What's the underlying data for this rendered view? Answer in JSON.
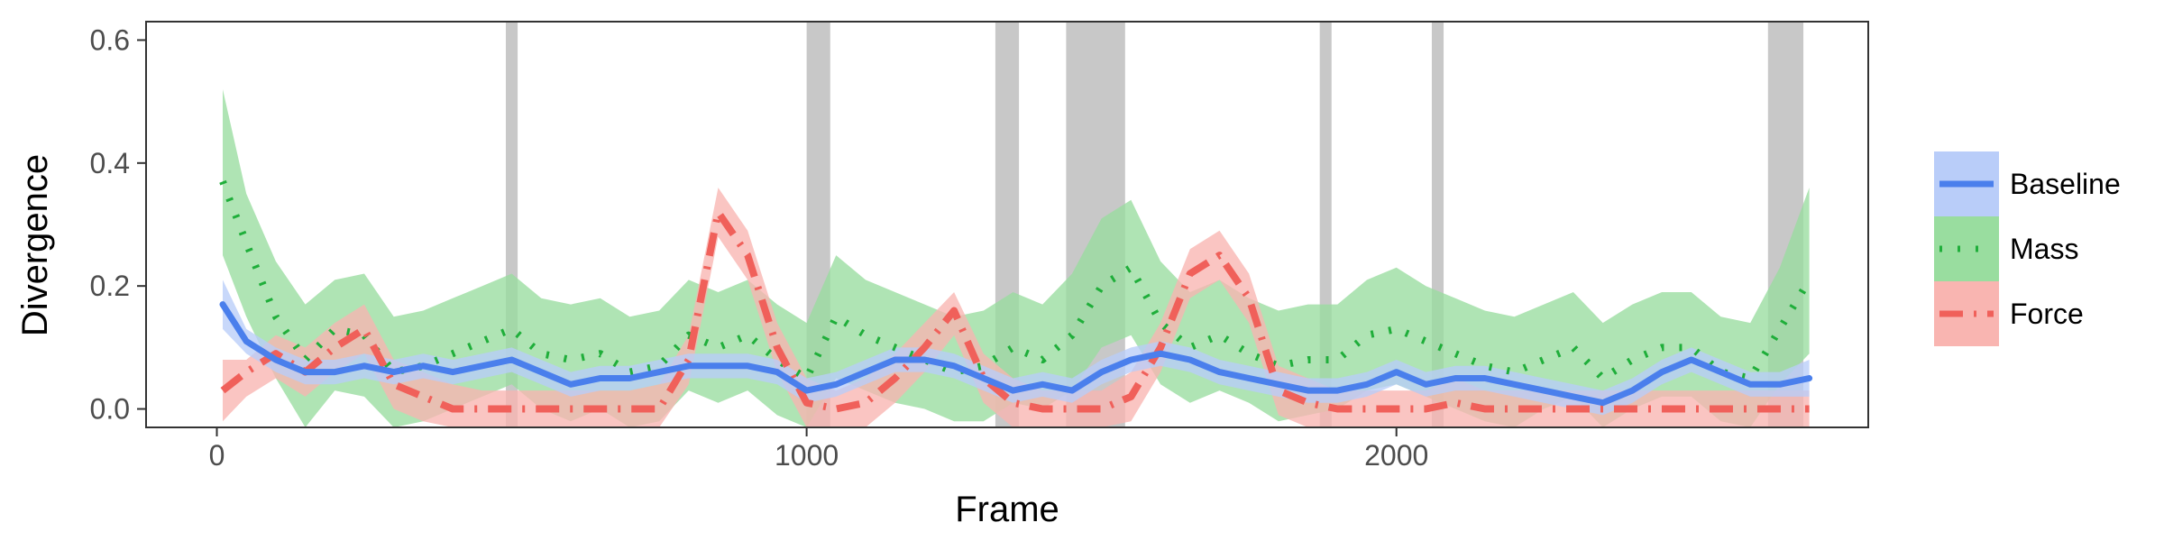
{
  "chart_data": {
    "type": "line",
    "xlabel": "Frame",
    "ylabel": "Divergence",
    "xlim": [
      -120,
      2800
    ],
    "ylim": [
      -0.03,
      0.63
    ],
    "x_ticks": [
      0,
      1000,
      2000
    ],
    "x_tick_labels": [
      "0",
      "1000",
      "2000"
    ],
    "y_ticks": [
      0.0,
      0.2,
      0.4,
      0.6
    ],
    "y_tick_labels": [
      "0.0",
      "0.2",
      "0.4",
      "0.6"
    ],
    "grid": false,
    "legend_position": "right",
    "shaded_intervals": [
      [
        490,
        510
      ],
      [
        1000,
        1040
      ],
      [
        1320,
        1360
      ],
      [
        1440,
        1540
      ],
      [
        1870,
        1890
      ],
      [
        2060,
        2080
      ],
      [
        2630,
        2690
      ]
    ],
    "x": [
      10,
      50,
      100,
      150,
      200,
      250,
      300,
      350,
      400,
      450,
      500,
      550,
      600,
      650,
      700,
      750,
      800,
      850,
      900,
      950,
      1000,
      1050,
      1100,
      1150,
      1200,
      1250,
      1300,
      1350,
      1400,
      1450,
      1500,
      1550,
      1600,
      1650,
      1700,
      1750,
      1800,
      1850,
      1900,
      1950,
      2000,
      2050,
      2100,
      2150,
      2200,
      2250,
      2300,
      2350,
      2400,
      2450,
      2500,
      2550,
      2600,
      2650,
      2700
    ],
    "series": [
      {
        "name": "Baseline",
        "color": "#4a7fec",
        "fill": "#b9cdf9",
        "line_style": "solid",
        "values": [
          0.17,
          0.11,
          0.08,
          0.06,
          0.06,
          0.07,
          0.06,
          0.07,
          0.06,
          0.07,
          0.08,
          0.06,
          0.04,
          0.05,
          0.05,
          0.06,
          0.07,
          0.07,
          0.07,
          0.06,
          0.03,
          0.04,
          0.06,
          0.08,
          0.08,
          0.07,
          0.05,
          0.03,
          0.04,
          0.03,
          0.06,
          0.08,
          0.09,
          0.08,
          0.06,
          0.05,
          0.04,
          0.03,
          0.03,
          0.04,
          0.06,
          0.04,
          0.05,
          0.05,
          0.04,
          0.03,
          0.02,
          0.01,
          0.03,
          0.06,
          0.08,
          0.06,
          0.04,
          0.04,
          0.05
        ],
        "lower": [
          0.13,
          0.09,
          0.06,
          0.04,
          0.04,
          0.05,
          0.04,
          0.05,
          0.04,
          0.05,
          0.06,
          0.04,
          0.02,
          0.03,
          0.03,
          0.04,
          0.05,
          0.05,
          0.05,
          0.04,
          0.01,
          0.02,
          0.04,
          0.06,
          0.06,
          0.05,
          0.03,
          0.01,
          0.02,
          0.01,
          0.04,
          0.06,
          0.07,
          0.06,
          0.04,
          0.03,
          0.02,
          0.01,
          0.01,
          0.02,
          0.04,
          0.02,
          0.03,
          0.03,
          0.02,
          0.01,
          0.0,
          -0.01,
          0.01,
          0.04,
          0.06,
          0.04,
          0.02,
          0.02,
          0.02
        ],
        "upper": [
          0.21,
          0.13,
          0.1,
          0.08,
          0.08,
          0.09,
          0.08,
          0.09,
          0.08,
          0.09,
          0.1,
          0.08,
          0.06,
          0.07,
          0.07,
          0.08,
          0.09,
          0.09,
          0.09,
          0.08,
          0.05,
          0.06,
          0.08,
          0.1,
          0.1,
          0.09,
          0.07,
          0.05,
          0.06,
          0.05,
          0.08,
          0.1,
          0.11,
          0.1,
          0.08,
          0.07,
          0.06,
          0.05,
          0.05,
          0.06,
          0.08,
          0.06,
          0.07,
          0.07,
          0.06,
          0.05,
          0.04,
          0.03,
          0.05,
          0.08,
          0.1,
          0.08,
          0.06,
          0.06,
          0.08
        ]
      },
      {
        "name": "Mass",
        "color": "#1fae3a",
        "fill": "#99dd9f",
        "line_style": "dotted",
        "values": [
          0.37,
          0.27,
          0.15,
          0.08,
          0.13,
          0.12,
          0.06,
          0.07,
          0.09,
          0.11,
          0.13,
          0.09,
          0.08,
          0.09,
          0.06,
          0.07,
          0.12,
          0.1,
          0.12,
          0.08,
          0.05,
          0.15,
          0.12,
          0.1,
          0.08,
          0.06,
          0.07,
          0.1,
          0.08,
          0.12,
          0.2,
          0.23,
          0.14,
          0.1,
          0.12,
          0.09,
          0.07,
          0.08,
          0.08,
          0.12,
          0.13,
          0.11,
          0.09,
          0.07,
          0.06,
          0.08,
          0.1,
          0.05,
          0.08,
          0.1,
          0.1,
          0.06,
          0.05,
          0.13,
          0.21
        ],
        "lower": [
          0.25,
          0.15,
          0.05,
          -0.03,
          0.03,
          0.02,
          -0.03,
          -0.02,
          0.0,
          0.02,
          0.04,
          0.0,
          -0.02,
          0.0,
          -0.03,
          -0.02,
          0.03,
          0.01,
          0.03,
          -0.01,
          -0.04,
          0.05,
          0.03,
          0.01,
          0.0,
          -0.02,
          -0.02,
          0.01,
          0.0,
          0.03,
          0.1,
          0.12,
          0.04,
          0.01,
          0.03,
          0.01,
          -0.02,
          -0.01,
          0.0,
          0.03,
          0.04,
          0.02,
          0.0,
          -0.02,
          -0.03,
          0.0,
          0.02,
          -0.03,
          0.0,
          0.02,
          0.02,
          -0.02,
          -0.03,
          0.04,
          0.09
        ],
        "upper": [
          0.52,
          0.35,
          0.24,
          0.17,
          0.21,
          0.22,
          0.15,
          0.16,
          0.18,
          0.2,
          0.22,
          0.18,
          0.17,
          0.18,
          0.15,
          0.16,
          0.21,
          0.19,
          0.21,
          0.17,
          0.14,
          0.25,
          0.21,
          0.19,
          0.17,
          0.15,
          0.16,
          0.19,
          0.17,
          0.22,
          0.31,
          0.34,
          0.24,
          0.19,
          0.21,
          0.18,
          0.16,
          0.17,
          0.17,
          0.21,
          0.23,
          0.2,
          0.18,
          0.16,
          0.15,
          0.17,
          0.19,
          0.14,
          0.17,
          0.19,
          0.19,
          0.15,
          0.14,
          0.23,
          0.36
        ]
      },
      {
        "name": "Force",
        "color": "#f0605a",
        "fill": "#f9b5b1",
        "line_style": "dashdot",
        "values": [
          0.03,
          0.06,
          0.09,
          0.06,
          0.1,
          0.13,
          0.04,
          0.02,
          0.0,
          0.0,
          0.0,
          0.0,
          0.0,
          0.0,
          0.0,
          0.0,
          0.08,
          0.32,
          0.25,
          0.1,
          0.01,
          0.0,
          0.01,
          0.05,
          0.1,
          0.16,
          0.05,
          0.01,
          0.0,
          0.0,
          0.0,
          0.02,
          0.1,
          0.22,
          0.25,
          0.18,
          0.03,
          0.01,
          0.0,
          0.0,
          0.0,
          0.0,
          0.01,
          0.0,
          0.0,
          0.0,
          0.0,
          0.0,
          0.0,
          0.0,
          0.0,
          0.0,
          0.0,
          0.0,
          0.0
        ],
        "lower": [
          -0.02,
          0.02,
          0.05,
          0.02,
          0.06,
          0.09,
          0.0,
          -0.02,
          -0.03,
          -0.03,
          -0.03,
          -0.03,
          -0.03,
          -0.03,
          -0.03,
          -0.03,
          0.04,
          0.28,
          0.21,
          0.06,
          -0.03,
          -0.03,
          -0.03,
          0.01,
          0.06,
          0.12,
          0.01,
          -0.03,
          -0.03,
          -0.03,
          -0.03,
          -0.02,
          0.06,
          0.18,
          0.21,
          0.14,
          -0.01,
          -0.03,
          -0.03,
          -0.03,
          -0.03,
          -0.03,
          -0.03,
          -0.03,
          -0.03,
          -0.03,
          -0.03,
          -0.03,
          -0.03,
          -0.03,
          -0.03,
          -0.03,
          -0.03,
          -0.03,
          -0.03
        ],
        "upper": [
          0.08,
          0.08,
          0.12,
          0.1,
          0.14,
          0.17,
          0.08,
          0.06,
          0.04,
          0.03,
          0.03,
          0.03,
          0.03,
          0.03,
          0.03,
          0.04,
          0.12,
          0.36,
          0.29,
          0.14,
          0.05,
          0.03,
          0.05,
          0.09,
          0.14,
          0.19,
          0.09,
          0.05,
          0.03,
          0.03,
          0.03,
          0.06,
          0.14,
          0.26,
          0.29,
          0.22,
          0.07,
          0.05,
          0.03,
          0.03,
          0.03,
          0.03,
          0.05,
          0.03,
          0.03,
          0.03,
          0.03,
          0.03,
          0.03,
          0.03,
          0.03,
          0.03,
          0.03,
          0.03,
          0.03
        ]
      }
    ]
  },
  "legend": {
    "items": [
      {
        "label": "Baseline",
        "color": "#4a7fec",
        "fill": "#b9cdf9",
        "line_style": "solid"
      },
      {
        "label": "Mass",
        "color": "#1fae3a",
        "fill": "#99dd9f",
        "line_style": "dotted"
      },
      {
        "label": "Force",
        "color": "#f0605a",
        "fill": "#f9b5b1",
        "line_style": "dashdot"
      }
    ]
  }
}
